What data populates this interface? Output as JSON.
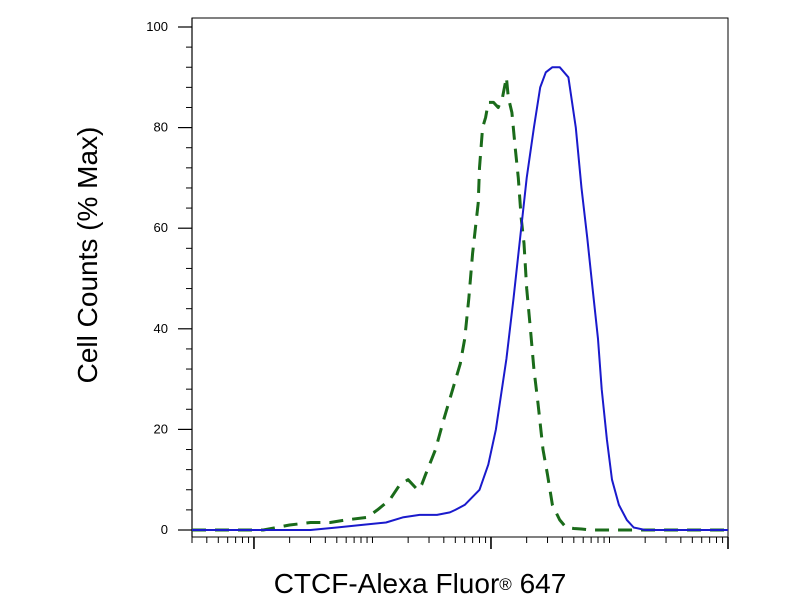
{
  "chart_data": {
    "type": "line",
    "title": "",
    "xlabel": "CTCF-Alexa Fluor",
    "xlabel_mark": "®",
    "xlabel_suffix": " 647",
    "ylabel": "Cell Counts (% Max)",
    "x_scale": "log",
    "xlim": [
      0.3,
      10000
    ],
    "ylim": [
      0,
      100
    ],
    "y_ticks": [
      0,
      20,
      40,
      60,
      80,
      100
    ],
    "x_major_ticks": [
      1,
      100,
      10000
    ],
    "grid": false,
    "legend": "none",
    "series": [
      {
        "color": "#1a6b1a",
        "line_style": "dashed",
        "x": [
          0.3,
          1.2,
          2,
          3,
          4.4,
          6,
          9,
          11,
          14,
          17,
          20,
          24,
          26,
          28,
          34,
          40,
          55,
          60,
          65,
          70,
          78,
          80,
          85,
          90,
          95,
          105,
          115,
          125,
          135,
          140,
          150,
          160,
          170,
          180,
          190,
          200,
          215,
          230,
          250,
          275,
          300,
          330,
          380,
          430,
          500,
          580,
          700,
          1000,
          10000
        ],
        "y": [
          0,
          0,
          1,
          1.5,
          1.5,
          2,
          2.5,
          4,
          6,
          9,
          10,
          8,
          9,
          11,
          16,
          22,
          33,
          38,
          46,
          55,
          65,
          72,
          80,
          82,
          85,
          85,
          84,
          86,
          90,
          86,
          83,
          76,
          70,
          62,
          57,
          48,
          40,
          32,
          25,
          16,
          11,
          5,
          2,
          0.5,
          0.3,
          0.2,
          0,
          0,
          0
        ]
      },
      {
        "color": "#1a1acc",
        "line_style": "solid",
        "x": [
          0.3,
          3,
          5,
          8,
          13,
          18,
          25,
          35,
          45,
          50,
          60,
          80,
          95,
          110,
          135,
          155,
          180,
          200,
          230,
          260,
          290,
          330,
          380,
          450,
          520,
          580,
          650,
          720,
          800,
          860,
          950,
          1050,
          1200,
          1400,
          1600,
          2000,
          3000,
          5000,
          10000
        ],
        "y": [
          0,
          0,
          0.5,
          1,
          1.5,
          2.5,
          3,
          3,
          3.5,
          4,
          5,
          8,
          13,
          20,
          34,
          46,
          60,
          70,
          80,
          88,
          91,
          92,
          92,
          90,
          80,
          68,
          58,
          48,
          38,
          28,
          18,
          10,
          5,
          2,
          0.5,
          0,
          0,
          0,
          0
        ]
      }
    ]
  }
}
